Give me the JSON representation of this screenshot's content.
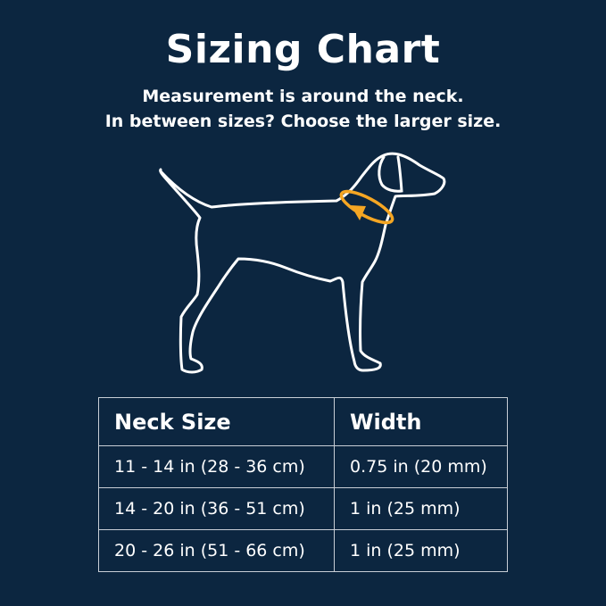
{
  "title": "Sizing Chart",
  "subtitle_lines": [
    "Measurement is around the neck.",
    "In between sizes? Choose the larger size."
  ],
  "colors": {
    "background": "#0c2640",
    "outline": "#ffffff",
    "accent": "#f5a623"
  },
  "illustration": "dog-outline-with-neck-measurement-arrow",
  "table": {
    "headers": [
      "Neck Size",
      "Width"
    ],
    "rows": [
      [
        "11 - 14 in (28 - 36 cm)",
        "0.75 in (20 mm)"
      ],
      [
        "14 - 20 in (36 - 51 cm)",
        "1 in (25 mm)"
      ],
      [
        "20 - 26 in (51 - 66 cm)",
        "1 in (25 mm)"
      ]
    ]
  }
}
